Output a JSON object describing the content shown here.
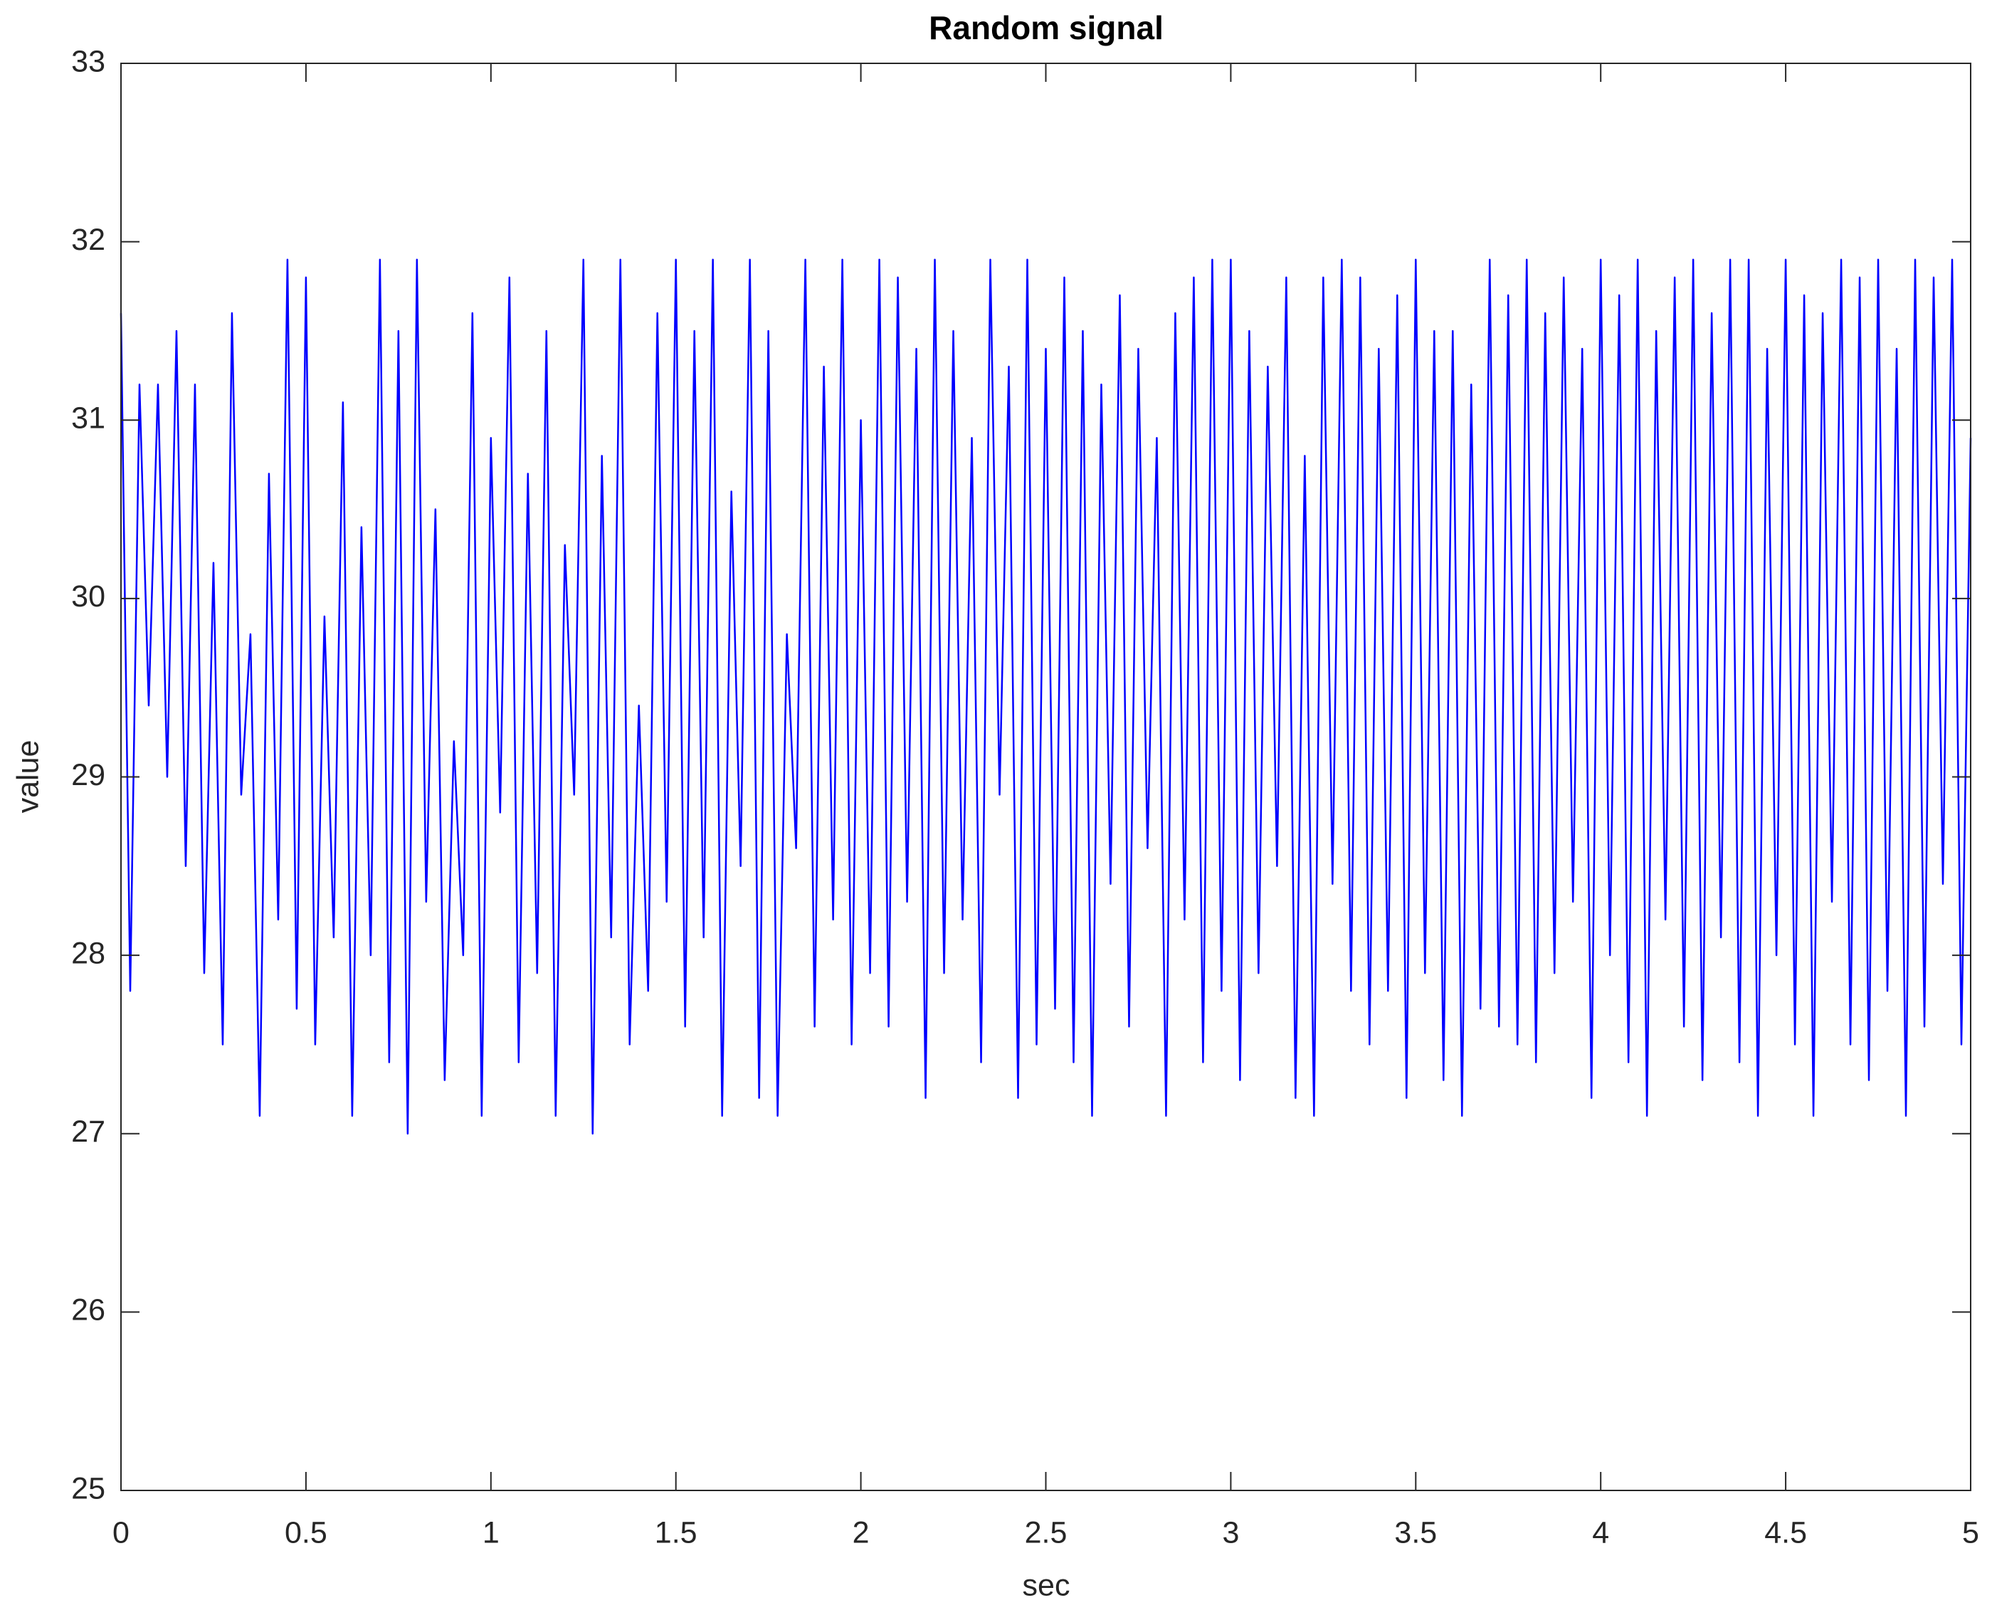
{
  "chart_data": {
    "type": "line",
    "title": "Random signal",
    "x_label": "sec",
    "y_label": "value",
    "color": "#0000ff",
    "x": [
      0,
      0.025,
      0.05,
      0.075,
      0.1,
      0.125,
      0.15,
      0.175,
      0.2,
      0.225,
      0.25,
      0.275,
      0.3,
      0.325,
      0.35,
      0.375,
      0.4,
      0.425,
      0.45,
      0.475,
      0.5,
      0.525,
      0.55,
      0.575,
      0.6,
      0.625,
      0.65,
      0.675,
      0.7,
      0.725,
      0.75,
      0.775,
      0.8,
      0.825,
      0.85,
      0.875,
      0.9,
      0.925,
      0.95,
      0.975,
      1,
      1.025,
      1.05,
      1.075,
      1.1,
      1.125,
      1.15,
      1.175,
      1.2,
      1.225,
      1.25,
      1.275,
      1.3,
      1.325,
      1.35,
      1.375,
      1.4,
      1.425,
      1.45,
      1.475,
      1.5,
      1.525,
      1.55,
      1.575,
      1.6,
      1.625,
      1.65,
      1.675,
      1.7,
      1.725,
      1.75,
      1.775,
      1.8,
      1.825,
      1.85,
      1.875,
      1.9,
      1.925,
      1.95,
      1.975,
      2,
      2.025,
      2.05,
      2.075,
      2.1,
      2.125,
      2.15,
      2.175,
      2.2,
      2.225,
      2.25,
      2.275,
      2.3,
      2.325,
      2.35,
      2.375,
      2.4,
      2.425,
      2.45,
      2.475,
      2.5,
      2.525,
      2.55,
      2.575,
      2.6,
      2.625,
      2.65,
      2.675,
      2.7,
      2.725,
      2.75,
      2.775,
      2.8,
      2.825,
      2.85,
      2.875,
      2.9,
      2.925,
      2.95,
      2.975,
      3,
      3.025,
      3.05,
      3.075,
      3.1,
      3.125,
      3.15,
      3.175,
      3.2,
      3.225,
      3.25,
      3.275,
      3.3,
      3.325,
      3.35,
      3.375,
      3.4,
      3.425,
      3.45,
      3.475,
      3.5,
      3.525,
      3.55,
      3.575,
      3.6,
      3.625,
      3.65,
      3.675,
      3.7,
      3.725,
      3.75,
      3.775,
      3.8,
      3.825,
      3.85,
      3.875,
      3.9,
      3.925,
      3.95,
      3.975,
      4,
      4.025,
      4.05,
      4.075,
      4.1,
      4.125,
      4.15,
      4.175,
      4.2,
      4.225,
      4.25,
      4.275,
      4.3,
      4.325,
      4.35,
      4.375,
      4.4,
      4.425,
      4.45,
      4.475,
      4.5,
      4.525,
      4.55,
      4.575,
      4.6,
      4.625,
      4.65,
      4.675,
      4.7,
      4.725,
      4.75,
      4.775,
      4.8,
      4.825,
      4.85,
      4.875,
      4.9,
      4.925,
      4.95,
      4.975,
      5
    ],
    "values": [
      31.6,
      27.8,
      31.2,
      29.4,
      31.2,
      29.0,
      31.5,
      28.5,
      31.2,
      27.9,
      30.2,
      27.5,
      31.6,
      28.9,
      29.8,
      27.1,
      30.7,
      28.2,
      31.9,
      27.7,
      31.8,
      27.5,
      29.9,
      28.1,
      31.1,
      27.1,
      30.4,
      28.0,
      31.9,
      27.4,
      31.5,
      27.0,
      31.9,
      28.3,
      30.5,
      27.3,
      29.2,
      28.0,
      31.6,
      27.1,
      30.9,
      28.8,
      31.8,
      27.4,
      30.7,
      27.9,
      31.5,
      27.1,
      30.3,
      28.9,
      31.9,
      27.0,
      30.8,
      28.1,
      31.9,
      27.5,
      29.4,
      27.8,
      31.6,
      28.3,
      31.9,
      27.6,
      31.5,
      28.1,
      31.9,
      27.1,
      30.6,
      28.5,
      31.9,
      27.2,
      31.5,
      27.1,
      29.8,
      28.6,
      31.9,
      27.6,
      31.3,
      28.2,
      31.9,
      27.5,
      31.0,
      27.9,
      31.9,
      27.6,
      31.8,
      28.3,
      31.4,
      27.2,
      31.9,
      27.9,
      31.5,
      28.2,
      30.9,
      27.4,
      31.9,
      28.9,
      31.3,
      27.2,
      31.9,
      27.5,
      31.4,
      27.7,
      31.8,
      27.4,
      31.5,
      27.1,
      31.2,
      28.4,
      31.7,
      27.6,
      31.4,
      28.6,
      30.9,
      27.1,
      31.6,
      28.2,
      31.8,
      27.4,
      31.9,
      27.8,
      31.9,
      27.3,
      31.5,
      27.9,
      31.3,
      28.5,
      31.8,
      27.2,
      30.8,
      27.1,
      31.8,
      28.4,
      31.9,
      27.8,
      31.8,
      27.5,
      31.4,
      27.8,
      31.7,
      27.2,
      31.9,
      27.9,
      31.5,
      27.3,
      31.5,
      27.1,
      31.2,
      27.7,
      31.9,
      27.6,
      31.7,
      27.5,
      31.9,
      27.4,
      31.6,
      27.9,
      31.8,
      28.3,
      31.4,
      27.2,
      31.9,
      28.0,
      31.7,
      27.4,
      31.9,
      27.1,
      31.5,
      28.2,
      31.8,
      27.6,
      31.9,
      27.3,
      31.6,
      28.1,
      31.9,
      27.4,
      31.9,
      27.1,
      31.4,
      28.0,
      31.9,
      27.5,
      31.7,
      27.1,
      31.6,
      28.3,
      31.9,
      27.5,
      31.8,
      27.3,
      31.9,
      27.8,
      31.4,
      27.1,
      31.9,
      27.6,
      31.8,
      28.4,
      31.9,
      27.5,
      30.9
    ],
    "xlim": [
      0,
      5
    ],
    "xticks": [
      0,
      0.5,
      1,
      1.5,
      2,
      2.5,
      3,
      3.5,
      4,
      4.5,
      5
    ],
    "ylim": [
      25,
      33
    ],
    "yticks": [
      25,
      26,
      27,
      28,
      29,
      30,
      31,
      32,
      33
    ],
    "grid": false
  }
}
